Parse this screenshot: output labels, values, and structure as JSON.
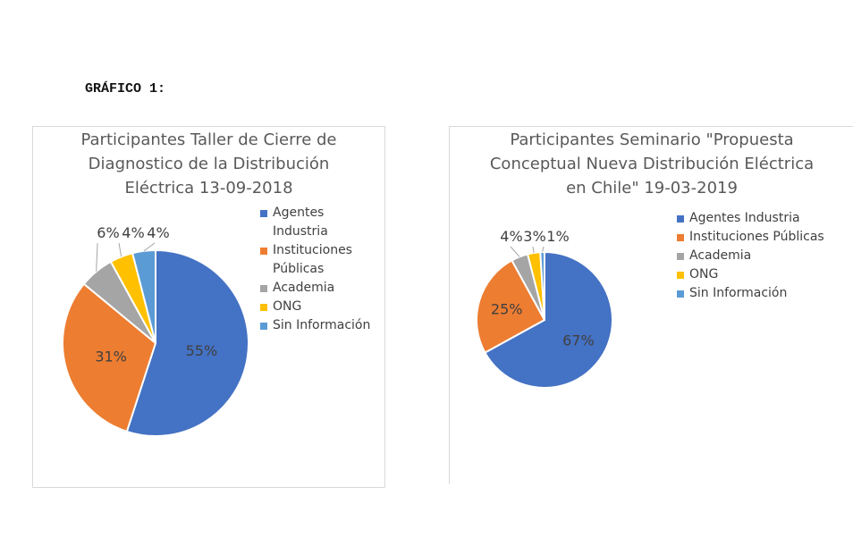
{
  "heading": "GRÁFICO 1:",
  "colors": {
    "agentes": "#4472c4",
    "instituciones": "#ed7d31",
    "academia": "#a5a5a5",
    "ong": "#ffc000",
    "sin_info": "#5b9bd5"
  },
  "chart_data": [
    {
      "type": "pie",
      "title_lines": [
        "Participantes Taller de Cierre de",
        "Diagnostico de la Distribución",
        "Eléctrica 13-09-2018"
      ],
      "legend_position": "right",
      "legend": [
        {
          "lines": [
            "Agentes",
            "Industria"
          ],
          "color": "#4472c4"
        },
        {
          "lines": [
            "Instituciones",
            "Públicas"
          ],
          "color": "#ed7d31"
        },
        {
          "lines": [
            "Academia"
          ],
          "color": "#a5a5a5"
        },
        {
          "lines": [
            "ONG"
          ],
          "color": "#ffc000"
        },
        {
          "lines": [
            "Sin Información"
          ],
          "color": "#5b9bd5"
        }
      ],
      "slices": [
        {
          "name": "Agentes Industria",
          "value": 55,
          "label": "55%"
        },
        {
          "name": "Instituciones Públicas",
          "value": 31,
          "label": "31%"
        },
        {
          "name": "Academia",
          "value": 6,
          "label": "6%"
        },
        {
          "name": "ONG",
          "value": 4,
          "label": "4%"
        },
        {
          "name": "Sin Información",
          "value": 4,
          "label": "4%"
        }
      ]
    },
    {
      "type": "pie",
      "title_lines": [
        "Participantes Seminario \"Propuesta",
        "Conceptual Nueva Distribución Eléctrica",
        "en Chile\" 19-03-2019"
      ],
      "legend_position": "right",
      "legend": [
        {
          "lines": [
            "Agentes Industria"
          ],
          "color": "#4472c4"
        },
        {
          "lines": [
            "Instituciones Públicas"
          ],
          "color": "#ed7d31"
        },
        {
          "lines": [
            "Academia"
          ],
          "color": "#a5a5a5"
        },
        {
          "lines": [
            "ONG"
          ],
          "color": "#ffc000"
        },
        {
          "lines": [
            "Sin Información"
          ],
          "color": "#5b9bd5"
        }
      ],
      "slices": [
        {
          "name": "Agentes Industria",
          "value": 67,
          "label": "67%"
        },
        {
          "name": "Instituciones Públicas",
          "value": 25,
          "label": "25%"
        },
        {
          "name": "Academia",
          "value": 4,
          "label": "4%"
        },
        {
          "name": "ONG",
          "value": 3,
          "label": "3%"
        },
        {
          "name": "Sin Información",
          "value": 1,
          "label": "1%"
        }
      ]
    }
  ]
}
